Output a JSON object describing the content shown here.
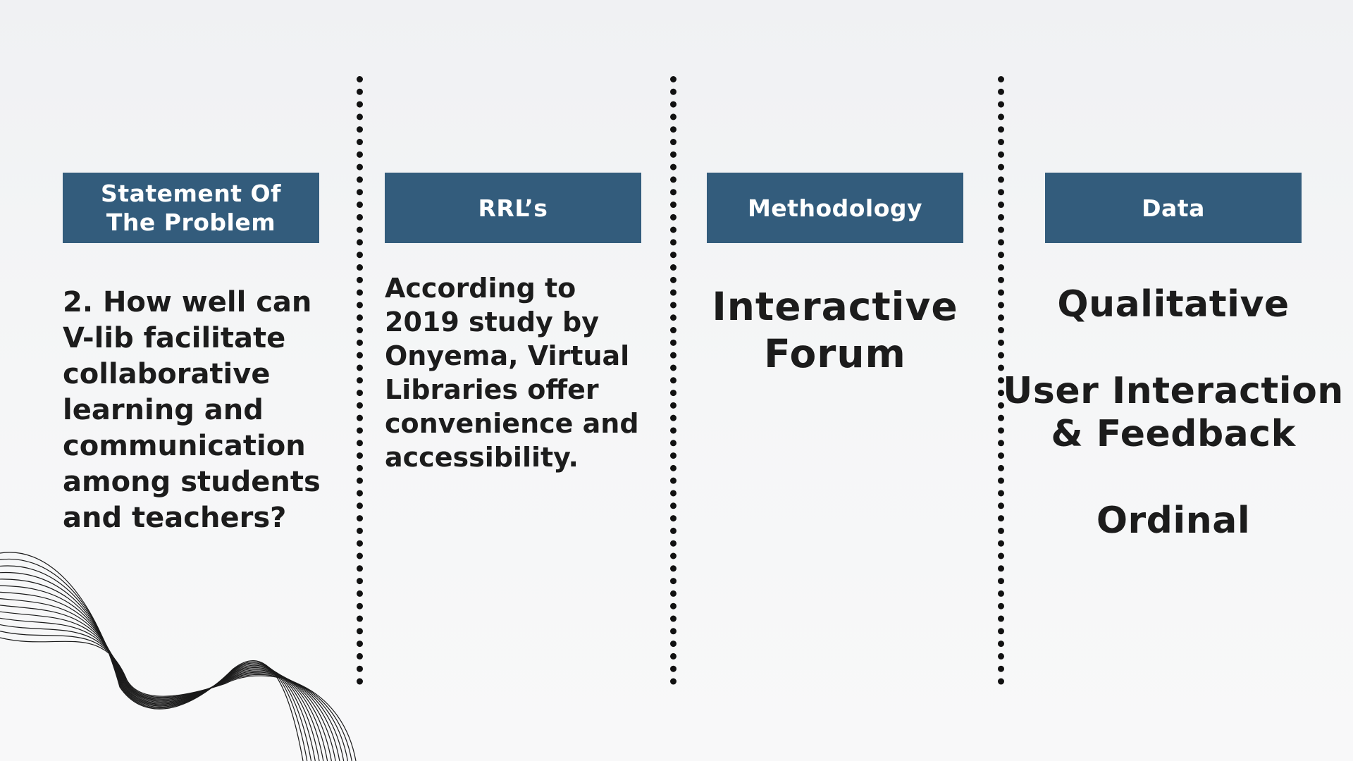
{
  "columns": [
    {
      "header": "Statement Of The Problem",
      "body": "2. How well can V-lib facilitate collaborative learning and communication among students and teachers?"
    },
    {
      "header": "RRL’s",
      "body": "According to 2019 study by Onyema, Virtual Libraries offer convenience and accessibility."
    },
    {
      "header": "Methodology",
      "body": "Interactive Forum"
    },
    {
      "header": "Data",
      "items": [
        "Qualitative",
        "User Interaction & Feedback",
        "Ordinal"
      ]
    }
  ],
  "colors": {
    "header_bg": "#335c7c",
    "header_text": "#ffffff",
    "body_text": "#1c1c1c",
    "background": "#f3f4f6",
    "divider": "#111111"
  },
  "decoration": "wave-lines"
}
